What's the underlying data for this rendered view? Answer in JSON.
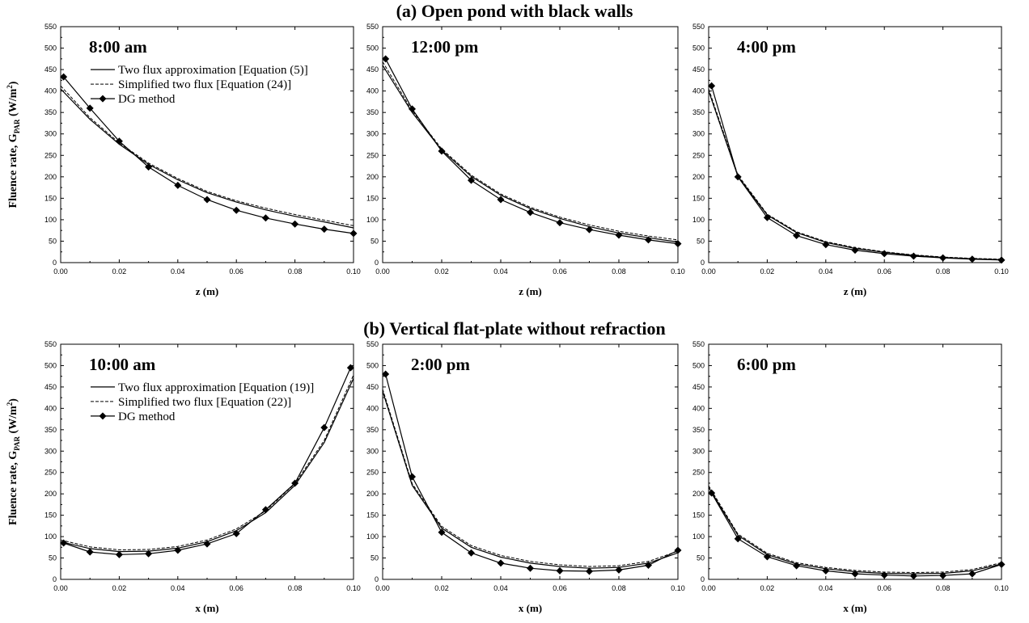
{
  "figure": {
    "section_a_title": "(a) Open pond with black walls",
    "section_b_title": "(b) Vertical flat-plate without refraction"
  },
  "chart_data": [
    {
      "type": "line",
      "row": "a",
      "title": "8:00 am",
      "xlabel": "z (m)",
      "ylabel": "Fluence rate, G_PAR (W/m^2)",
      "xlim": [
        0,
        0.1
      ],
      "ylim": [
        0,
        550
      ],
      "xticks": [
        0,
        0.02,
        0.04,
        0.06,
        0.08,
        0.1
      ],
      "yticks": [
        0,
        50,
        100,
        150,
        200,
        250,
        300,
        350,
        400,
        450,
        500,
        550
      ],
      "legend": [
        "Two flux approximation [Equation (5)]",
        "Simplified two flux [Equation (24)]",
        "DG method"
      ],
      "series": [
        {
          "name": "Two flux approximation [Equation (5)]",
          "style": "solid",
          "x": [
            0,
            0.01,
            0.02,
            0.03,
            0.04,
            0.05,
            0.06,
            0.07,
            0.08,
            0.09,
            0.1
          ],
          "y": [
            405,
            334,
            276,
            229,
            193,
            163,
            141,
            123,
            108,
            95,
            81
          ]
        },
        {
          "name": "Simplified two flux [Equation (24)]",
          "style": "dashed",
          "x": [
            0,
            0.01,
            0.02,
            0.03,
            0.04,
            0.05,
            0.06,
            0.07,
            0.08,
            0.09,
            0.1
          ],
          "y": [
            412,
            338,
            279,
            232,
            196,
            166,
            144,
            127,
            112,
            99,
            86
          ]
        },
        {
          "name": "DG method",
          "style": "marker",
          "x": [
            0.001,
            0.01,
            0.02,
            0.03,
            0.04,
            0.05,
            0.06,
            0.07,
            0.08,
            0.09,
            0.1
          ],
          "y": [
            433,
            360,
            283,
            223,
            180,
            147,
            122,
            104,
            90,
            78,
            68
          ]
        }
      ]
    },
    {
      "type": "line",
      "row": "a",
      "title": "12:00 pm",
      "xlabel": "z (m)",
      "xlim": [
        0,
        0.1
      ],
      "ylim": [
        0,
        550
      ],
      "xticks": [
        0,
        0.02,
        0.04,
        0.06,
        0.08,
        0.1
      ],
      "yticks": [
        0,
        50,
        100,
        150,
        200,
        250,
        300,
        350,
        400,
        450,
        500,
        550
      ],
      "series": [
        {
          "name": "Two flux approximation [Equation (5)]",
          "style": "solid",
          "x": [
            0,
            0.01,
            0.02,
            0.03,
            0.04,
            0.05,
            0.06,
            0.07,
            0.08,
            0.09,
            0.1
          ],
          "y": [
            460,
            350,
            262,
            201,
            157,
            126,
            103,
            84,
            69,
            58,
            48
          ]
        },
        {
          "name": "Simplified two flux [Equation (24)]",
          "style": "dashed",
          "x": [
            0,
            0.01,
            0.02,
            0.03,
            0.04,
            0.05,
            0.06,
            0.07,
            0.08,
            0.09,
            0.1
          ],
          "y": [
            468,
            354,
            265,
            204,
            160,
            129,
            106,
            88,
            73,
            62,
            53
          ]
        },
        {
          "name": "DG method",
          "style": "marker",
          "x": [
            0.001,
            0.01,
            0.02,
            0.03,
            0.04,
            0.05,
            0.06,
            0.07,
            0.08,
            0.09,
            0.1
          ],
          "y": [
            475,
            358,
            260,
            192,
            147,
            117,
            93,
            77,
            64,
            53,
            44
          ]
        }
      ]
    },
    {
      "type": "line",
      "row": "a",
      "title": "4:00 pm",
      "xlabel": "z (m)",
      "xlim": [
        0,
        0.1
      ],
      "ylim": [
        0,
        550
      ],
      "xticks": [
        0,
        0.02,
        0.04,
        0.06,
        0.08,
        0.1
      ],
      "yticks": [
        0,
        50,
        100,
        150,
        200,
        250,
        300,
        350,
        400,
        450,
        500,
        550
      ],
      "series": [
        {
          "name": "Two flux approximation [Equation (5)]",
          "style": "solid",
          "x": [
            0,
            0.01,
            0.02,
            0.03,
            0.04,
            0.05,
            0.06,
            0.07,
            0.08,
            0.09,
            0.1
          ],
          "y": [
            400,
            201,
            111,
            70,
            47,
            33,
            24,
            17,
            12,
            9,
            7
          ]
        },
        {
          "name": "Simplified two flux [Equation (24)]",
          "style": "dashed",
          "x": [
            0,
            0.01,
            0.02,
            0.03,
            0.04,
            0.05,
            0.06,
            0.07,
            0.08,
            0.09,
            0.1
          ],
          "y": [
            405,
            204,
            113,
            72,
            49,
            35,
            25,
            18,
            13,
            10,
            8
          ]
        },
        {
          "name": "DG method",
          "style": "marker",
          "x": [
            0.001,
            0.01,
            0.02,
            0.03,
            0.04,
            0.05,
            0.06,
            0.07,
            0.08,
            0.09,
            0.1
          ],
          "y": [
            412,
            200,
            105,
            63,
            42,
            29,
            21,
            15,
            11,
            8,
            6
          ]
        }
      ]
    },
    {
      "type": "line",
      "row": "b",
      "title": "10:00 am",
      "xlabel": "x (m)",
      "ylabel": "Fluence rate, G_PAR (W/m^2)",
      "xlim": [
        0,
        0.1
      ],
      "ylim": [
        0,
        550
      ],
      "xticks": [
        0,
        0.02,
        0.04,
        0.06,
        0.08,
        0.1
      ],
      "yticks": [
        0,
        50,
        100,
        150,
        200,
        250,
        300,
        350,
        400,
        450,
        500,
        550
      ],
      "legend": [
        "Two flux approximation [Equation (19)]",
        "Simplified two flux [Equation (22)]",
        "DG method"
      ],
      "series": [
        {
          "name": "Two flux approximation [Equation (19)]",
          "style": "solid",
          "x": [
            0,
            0.01,
            0.02,
            0.03,
            0.04,
            0.05,
            0.06,
            0.07,
            0.08,
            0.09,
            0.1
          ],
          "y": [
            88,
            72,
            65,
            66,
            73,
            88,
            114,
            156,
            220,
            320,
            470
          ]
        },
        {
          "name": "Simplified two flux [Equation (22)]",
          "style": "dashed",
          "x": [
            0,
            0.01,
            0.02,
            0.03,
            0.04,
            0.05,
            0.06,
            0.07,
            0.08,
            0.09,
            0.1
          ],
          "y": [
            92,
            76,
            69,
            70,
            77,
            92,
            118,
            160,
            224,
            325,
            478
          ]
        },
        {
          "name": "DG method",
          "style": "marker",
          "x": [
            0.001,
            0.01,
            0.02,
            0.03,
            0.04,
            0.05,
            0.06,
            0.07,
            0.08,
            0.09,
            0.099
          ],
          "y": [
            85,
            64,
            58,
            60,
            68,
            83,
            107,
            163,
            225,
            355,
            495
          ]
        }
      ]
    },
    {
      "type": "line",
      "row": "b",
      "title": "2:00 pm",
      "xlabel": "x (m)",
      "xlim": [
        0,
        0.1
      ],
      "ylim": [
        0,
        550
      ],
      "xticks": [
        0,
        0.02,
        0.04,
        0.06,
        0.08,
        0.1
      ],
      "yticks": [
        0,
        50,
        100,
        150,
        200,
        250,
        300,
        350,
        400,
        450,
        500,
        550
      ],
      "series": [
        {
          "name": "Two flux approximation [Equation (19)]",
          "style": "solid",
          "x": [
            0,
            0.01,
            0.02,
            0.03,
            0.04,
            0.05,
            0.06,
            0.07,
            0.08,
            0.09,
            0.1
          ],
          "y": [
            440,
            220,
            120,
            75,
            52,
            38,
            30,
            26,
            28,
            38,
            62
          ]
        },
        {
          "name": "Simplified two flux [Equation (22)]",
          "style": "dashed",
          "x": [
            0,
            0.01,
            0.02,
            0.03,
            0.04,
            0.05,
            0.06,
            0.07,
            0.08,
            0.09,
            0.1
          ],
          "y": [
            445,
            224,
            124,
            79,
            56,
            42,
            34,
            30,
            32,
            42,
            66
          ]
        },
        {
          "name": "DG method",
          "style": "marker",
          "x": [
            0.001,
            0.01,
            0.02,
            0.03,
            0.04,
            0.05,
            0.06,
            0.07,
            0.08,
            0.09,
            0.1
          ],
          "y": [
            480,
            240,
            110,
            62,
            38,
            26,
            20,
            19,
            22,
            33,
            68
          ]
        }
      ]
    },
    {
      "type": "line",
      "row": "b",
      "title": "6:00 pm",
      "xlabel": "x (m)",
      "xlim": [
        0,
        0.1
      ],
      "ylim": [
        0,
        550
      ],
      "xticks": [
        0,
        0.02,
        0.04,
        0.06,
        0.08,
        0.1
      ],
      "yticks": [
        0,
        50,
        100,
        150,
        200,
        250,
        300,
        350,
        400,
        450,
        500,
        550
      ],
      "series": [
        {
          "name": "Two flux approximation [Equation (19)]",
          "style": "solid",
          "x": [
            0,
            0.01,
            0.02,
            0.03,
            0.04,
            0.05,
            0.06,
            0.07,
            0.08,
            0.09,
            0.1
          ],
          "y": [
            215,
            103,
            58,
            36,
            25,
            18,
            14,
            13,
            14,
            20,
            36
          ]
        },
        {
          "name": "Simplified two flux [Equation (22)]",
          "style": "dashed",
          "x": [
            0,
            0.01,
            0.02,
            0.03,
            0.04,
            0.05,
            0.06,
            0.07,
            0.08,
            0.09,
            0.1
          ],
          "y": [
            219,
            106,
            61,
            39,
            28,
            21,
            17,
            16,
            17,
            23,
            39
          ]
        },
        {
          "name": "DG method",
          "style": "marker",
          "x": [
            0.001,
            0.01,
            0.02,
            0.03,
            0.04,
            0.05,
            0.06,
            0.07,
            0.08,
            0.09,
            0.1
          ],
          "y": [
            202,
            95,
            53,
            32,
            20,
            13,
            10,
            8,
            9,
            13,
            35
          ]
        }
      ]
    }
  ]
}
